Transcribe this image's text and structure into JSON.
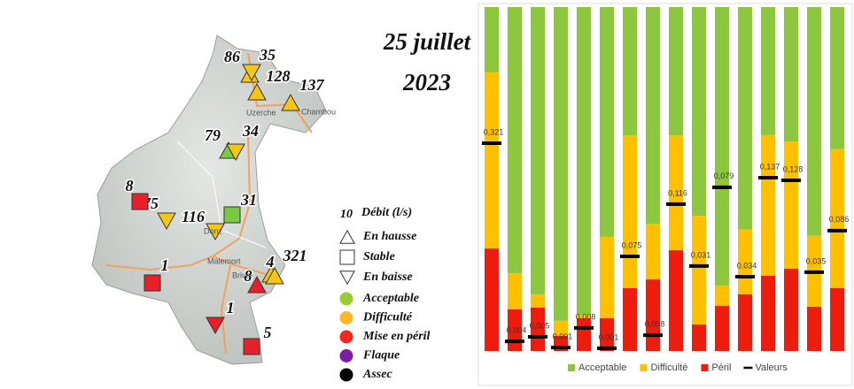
{
  "map": {
    "title_lines": [
      "25 juillet",
      "2023"
    ],
    "stations": [
      {
        "label": "86",
        "shape": "triangle-up",
        "color": "#f5c518"
      },
      {
        "label": "35",
        "shape": "triangle-down",
        "color": "#f5c518"
      },
      {
        "label": "128",
        "shape": "triangle-up",
        "color": "#f5c518"
      },
      {
        "label": "137",
        "shape": "triangle-up",
        "color": "#f5c518"
      },
      {
        "label": "79",
        "shape": "triangle-up",
        "color": "#7ac943"
      },
      {
        "label": "34",
        "shape": "triangle-down",
        "color": "#f5c518"
      },
      {
        "label": "31",
        "shape": "square",
        "color": "#7ac943"
      },
      {
        "label": "75",
        "shape": "triangle-down",
        "color": "#f5c518"
      },
      {
        "label": "116",
        "shape": "triangle-down",
        "color": "#f5c518"
      },
      {
        "label": "8",
        "shape": "square",
        "color": "#e8202a"
      },
      {
        "label": "1",
        "shape": "square",
        "color": "#e8202a"
      },
      {
        "label": "8",
        "shape": "triangle-up",
        "color": "#e8202a"
      },
      {
        "label": "4",
        "shape": "triangle-up",
        "color": "#f5c518"
      },
      {
        "label": "321",
        "shape": "triangle-up",
        "color": "#f5c518"
      },
      {
        "label": "1",
        "shape": "triangle-down",
        "color": "#e8202a"
      },
      {
        "label": "5",
        "shape": "square",
        "color": "#e8202a"
      }
    ],
    "towns": [
      "Uzerche",
      "Chambou",
      "Brive-",
      "Malemort",
      "Donz"
    ],
    "legend": {
      "size_value": "10",
      "size_label": "Débit (l/s)",
      "trends": [
        {
          "label": "En hausse",
          "shape": "triangle-up"
        },
        {
          "label": "Stable",
          "shape": "square"
        },
        {
          "label": "En baisse",
          "shape": "triangle-down"
        }
      ],
      "states": [
        {
          "label": "Acceptable",
          "color": "#9acd32"
        },
        {
          "label": "Difficulté",
          "color": "#fdb827"
        },
        {
          "label": "Mise en péril",
          "color": "#f0281e"
        },
        {
          "label": "Flaque",
          "color": "#7b1fa2"
        },
        {
          "label": "Assec",
          "color": "#000000"
        }
      ]
    }
  },
  "chart_data": {
    "type": "stacked-bar",
    "ylim": [
      0,
      100
    ],
    "categories": [
      null,
      null,
      null,
      null,
      null,
      null,
      null,
      null,
      null,
      null,
      null,
      null,
      null,
      null,
      null,
      null
    ],
    "series": [
      {
        "name": "Acceptable",
        "color": "#8dc63f",
        "values": [
          19.0,
          77.4,
          83.5,
          91.2,
          89.5,
          66.8,
          37.3,
          63.0,
          37.3,
          60.7,
          81.0,
          64.7,
          37.2,
          39.1,
          66.5,
          41.3
        ]
      },
      {
        "name": "Difficulté",
        "color": "#ffc000",
        "values": [
          51.2,
          10.5,
          3.9,
          4.4,
          1.0,
          23.7,
          44.4,
          16.2,
          33.4,
          31.6,
          5.9,
          18.8,
          40.9,
          37.0,
          20.6,
          40.4
        ]
      },
      {
        "name": "Péril",
        "color": "#ee1c0c",
        "values": [
          29.8,
          12.1,
          12.6,
          4.4,
          9.5,
          9.5,
          18.3,
          20.8,
          29.3,
          7.7,
          13.1,
          16.5,
          21.9,
          23.9,
          12.9,
          18.3
        ]
      },
      {
        "name": "Valeurs",
        "type": "marker",
        "color": "#000000",
        "values": [
          60.4,
          2.8,
          4.1,
          1.0,
          6.7,
          0.8,
          27.5,
          4.6,
          42.7,
          24.7,
          47.6,
          21.6,
          50.4,
          49.6,
          22.9,
          35.0
        ]
      }
    ],
    "annotations": [
      "0,321",
      "0,004",
      "0,005",
      "0,001",
      "0,008",
      "0,001",
      "0,075",
      "0,008",
      "0,116",
      "0,031",
      "0,079",
      "0,034",
      "0,137",
      "0,128",
      "0,035",
      "0,086"
    ],
    "legend": "bottom"
  }
}
